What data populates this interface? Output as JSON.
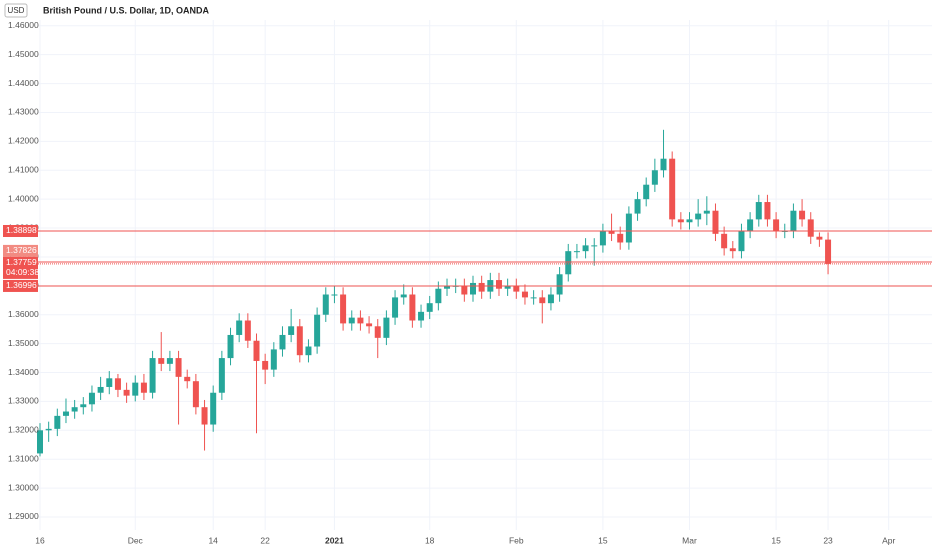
{
  "chart_data": {
    "type": "candlestick",
    "title": "British Pound / U.S. Dollar, 1D, OANDA",
    "currency": "USD",
    "up_color": "#26a69a",
    "down_color": "#ef5350",
    "grid": true,
    "categories": [
      "16",
      null,
      null,
      null,
      null,
      null,
      null,
      null,
      null,
      null,
      null,
      "Dec",
      null,
      null,
      null,
      null,
      null,
      null,
      null,
      null,
      "14",
      null,
      null,
      null,
      null,
      null,
      "22",
      null,
      null,
      null,
      null,
      null,
      null,
      null,
      "2021",
      null,
      null,
      null,
      null,
      null,
      null,
      null,
      null,
      null,
      null,
      "18",
      null,
      null,
      null,
      null,
      null,
      null,
      null,
      null,
      null,
      "Feb",
      null,
      null,
      null,
      null,
      null,
      null,
      null,
      null,
      null,
      "15",
      null,
      null,
      null,
      null,
      null,
      null,
      null,
      null,
      null,
      "Mar",
      null,
      null,
      null,
      null,
      null,
      null,
      null,
      null,
      null,
      "15",
      null,
      null,
      null,
      null,
      null,
      "23",
      null,
      null,
      null,
      null,
      null,
      null,
      "Apr"
    ],
    "open": [
      1.312,
      1.32,
      1.3205,
      1.325,
      1.3265,
      1.328,
      1.329,
      1.333,
      1.335,
      1.338,
      1.334,
      1.332,
      1.3365,
      1.333,
      1.345,
      1.343,
      1.345,
      1.3385,
      1.337,
      1.328,
      1.322,
      1.333,
      1.345,
      1.353,
      1.358,
      1.351,
      1.344,
      1.341,
      1.348,
      1.353,
      1.356,
      1.346,
      1.349,
      1.36,
      1.367,
      1.367,
      1.357,
      1.359,
      1.357,
      1.356,
      1.352,
      1.359,
      1.366,
      1.367,
      1.358,
      1.361,
      1.364,
      1.369,
      1.37,
      1.37,
      1.367,
      1.371,
      1.368,
      1.372,
      1.369,
      1.37,
      1.368,
      1.366,
      1.366,
      1.364,
      1.367,
      1.374,
      1.382,
      1.382,
      1.384,
      1.384,
      1.389,
      1.388,
      1.385,
      1.395,
      1.4,
      1.405,
      1.41,
      1.414,
      1.393,
      1.392,
      1.393,
      1.395,
      1.396,
      1.388,
      1.383,
      1.382,
      1.389,
      1.393,
      1.399,
      1.393,
      1.389,
      1.389,
      1.396,
      1.393,
      1.387,
      1.386,
      null,
      null,
      null,
      null,
      null,
      null,
      null
    ],
    "high": [
      1.3225,
      1.323,
      1.3275,
      1.331,
      1.3305,
      1.3315,
      1.3355,
      1.3385,
      1.3405,
      1.3395,
      1.3365,
      1.339,
      1.3395,
      1.3475,
      1.354,
      1.3475,
      1.3475,
      1.341,
      1.3395,
      1.3305,
      1.3355,
      1.3475,
      1.3555,
      1.3605,
      1.3605,
      1.3535,
      1.3465,
      1.3505,
      1.356,
      1.362,
      1.3585,
      1.3515,
      1.3625,
      1.3695,
      1.37,
      1.3695,
      1.3615,
      1.3615,
      1.3595,
      1.3585,
      1.3615,
      1.3685,
      1.3705,
      1.3695,
      1.3635,
      1.3665,
      1.3715,
      1.3725,
      1.3725,
      1.3725,
      1.3735,
      1.3735,
      1.3745,
      1.3745,
      1.3725,
      1.3725,
      1.3705,
      1.3685,
      1.3685,
      1.3695,
      1.3765,
      1.3845,
      1.3845,
      1.3865,
      1.3865,
      1.3915,
      1.395,
      1.3905,
      1.3975,
      1.4025,
      1.4075,
      1.414,
      1.424,
      1.4165,
      1.3955,
      1.3955,
      1.4,
      1.401,
      1.3985,
      1.3905,
      1.3855,
      1.3915,
      1.3955,
      1.4015,
      1.4015,
      1.3955,
      1.3915,
      1.3985,
      1.4,
      1.3955,
      1.3885,
      1.3885,
      null,
      null,
      null,
      null,
      null,
      null,
      null
    ],
    "low": [
      1.311,
      1.316,
      1.318,
      1.3225,
      1.324,
      1.3255,
      1.3265,
      1.3305,
      1.3325,
      1.3315,
      1.3295,
      1.33,
      1.3305,
      1.331,
      1.3405,
      1.3405,
      1.322,
      1.3345,
      1.3255,
      1.313,
      1.3195,
      1.3305,
      1.3425,
      1.3505,
      1.3485,
      1.319,
      1.336,
      1.3385,
      1.3455,
      1.3505,
      1.3435,
      1.3435,
      1.3465,
      1.3575,
      1.364,
      1.3545,
      1.3545,
      1.3545,
      1.3535,
      1.345,
      1.3495,
      1.3565,
      1.3635,
      1.3555,
      1.3555,
      1.3585,
      1.3615,
      1.3665,
      1.3675,
      1.3645,
      1.3645,
      1.3655,
      1.3655,
      1.3665,
      1.3665,
      1.3655,
      1.3635,
      1.3635,
      1.357,
      1.3615,
      1.3645,
      1.3715,
      1.3795,
      1.3795,
      1.377,
      1.3815,
      1.3855,
      1.3825,
      1.3825,
      1.3925,
      1.3975,
      1.4025,
      1.4075,
      1.3905,
      1.3895,
      1.3895,
      1.3905,
      1.391,
      1.3855,
      1.3805,
      1.3795,
      1.3795,
      1.3865,
      1.3905,
      1.3905,
      1.3865,
      1.3865,
      1.3865,
      1.3905,
      1.3845,
      1.3835,
      1.374,
      null,
      null,
      null,
      null,
      null,
      null,
      null
    ],
    "close": [
      1.32,
      1.3205,
      1.325,
      1.3265,
      1.328,
      1.329,
      1.333,
      1.335,
      1.338,
      1.334,
      1.332,
      1.3365,
      1.333,
      1.345,
      1.343,
      1.345,
      1.3385,
      1.337,
      1.328,
      1.322,
      1.333,
      1.345,
      1.353,
      1.358,
      1.351,
      1.344,
      1.341,
      1.348,
      1.353,
      1.356,
      1.346,
      1.349,
      1.36,
      1.367,
      1.367,
      1.357,
      1.359,
      1.357,
      1.356,
      1.352,
      1.359,
      1.366,
      1.367,
      1.358,
      1.361,
      1.364,
      1.369,
      1.37,
      1.37,
      1.367,
      1.371,
      1.368,
      1.372,
      1.369,
      1.37,
      1.368,
      1.366,
      1.366,
      1.364,
      1.367,
      1.374,
      1.382,
      1.382,
      1.384,
      1.384,
      1.389,
      1.388,
      1.385,
      1.395,
      1.4,
      1.405,
      1.41,
      1.414,
      1.393,
      1.392,
      1.393,
      1.395,
      1.396,
      1.388,
      1.383,
      1.382,
      1.389,
      1.393,
      1.399,
      1.393,
      1.389,
      1.389,
      1.396,
      1.393,
      1.387,
      1.386,
      1.37759,
      null,
      null,
      null,
      null,
      null,
      null,
      null
    ],
    "ylim": [
      1.2855,
      1.462
    ],
    "yticks": [
      {
        "value": 1.29,
        "label": "1.29000"
      },
      {
        "value": 1.3,
        "label": "1.30000"
      },
      {
        "value": 1.31,
        "label": "1.31000"
      },
      {
        "value": 1.32,
        "label": "1.32000"
      },
      {
        "value": 1.33,
        "label": "1.33000"
      },
      {
        "value": 1.34,
        "label": "1.34000"
      },
      {
        "value": 1.35,
        "label": "1.35000"
      },
      {
        "value": 1.36,
        "label": "1.36000"
      },
      {
        "value": 1.37,
        "label": "1.37000"
      },
      {
        "value": 1.38,
        "label": "1.38000"
      },
      {
        "value": 1.39,
        "label": "1.39000"
      },
      {
        "value": 1.4,
        "label": "1.40000"
      },
      {
        "value": 1.41,
        "label": "1.41000"
      },
      {
        "value": 1.42,
        "label": "1.42000"
      },
      {
        "value": 1.43,
        "label": "1.43000"
      },
      {
        "value": 1.44,
        "label": "1.44000"
      },
      {
        "value": 1.45,
        "label": "1.45000"
      },
      {
        "value": 1.46,
        "label": "1.46000"
      }
    ],
    "price_lines": [
      {
        "value": 1.38898,
        "label": "1.38898"
      },
      {
        "value": 1.37826,
        "label": "1.37826"
      },
      {
        "value": 1.36996,
        "label": "1.36996"
      }
    ],
    "last_price": {
      "value": 1.37759,
      "label": "1.37759",
      "countdown": "04:09:38"
    }
  }
}
